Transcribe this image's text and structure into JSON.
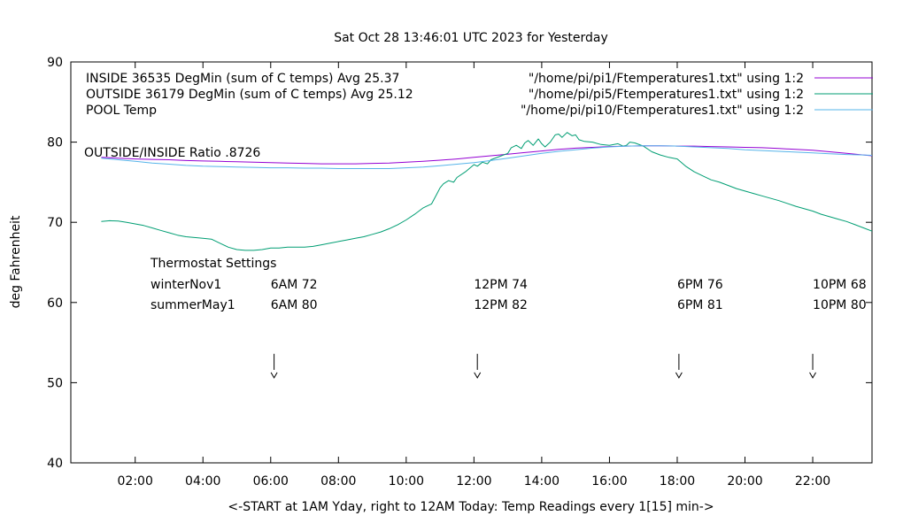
{
  "chart_data": {
    "type": "line",
    "title": "Sat Oct 28 13:46:01 UTC 2023 for Yesterday",
    "xlabel": "<-START at 1AM Yday, right to 12AM Today:  Temp Readings every 1[15] min->",
    "ylabel": "deg Fahrenheit",
    "xlim": [
      0.1,
      23.75
    ],
    "ylim": [
      40,
      90
    ],
    "grid": false,
    "legend_position": "top-left-inside",
    "x_ticks": [
      {
        "value": 2,
        "label": "02:00"
      },
      {
        "value": 4,
        "label": "04:00"
      },
      {
        "value": 6,
        "label": "06:00"
      },
      {
        "value": 8,
        "label": "08:00"
      },
      {
        "value": 10,
        "label": "10:00"
      },
      {
        "value": 12,
        "label": "12:00"
      },
      {
        "value": 14,
        "label": "14:00"
      },
      {
        "value": 16,
        "label": "16:00"
      },
      {
        "value": 18,
        "label": "18:00"
      },
      {
        "value": 20,
        "label": "20:00"
      },
      {
        "value": 22,
        "label": "22:00"
      }
    ],
    "y_ticks": [
      40,
      50,
      60,
      70,
      80,
      90
    ],
    "series": [
      {
        "name": "INSIDE",
        "legend_left": "INSIDE 36535 DegMin (sum of C temps) Avg 25.37",
        "legend_right": "\"/home/pi/pi1/Ftemperatures1.txt\" using 1:2",
        "color": "#9400D3",
        "points": [
          [
            1.0,
            78.1
          ],
          [
            1.5,
            78.0
          ],
          [
            2.0,
            77.9
          ],
          [
            2.5,
            77.85
          ],
          [
            3.0,
            77.8
          ],
          [
            3.5,
            77.7
          ],
          [
            4.0,
            77.65
          ],
          [
            4.5,
            77.6
          ],
          [
            5.0,
            77.55
          ],
          [
            5.5,
            77.5
          ],
          [
            6.0,
            77.45
          ],
          [
            6.5,
            77.4
          ],
          [
            7.0,
            77.35
          ],
          [
            7.5,
            77.3
          ],
          [
            8.0,
            77.3
          ],
          [
            8.5,
            77.3
          ],
          [
            9.0,
            77.35
          ],
          [
            9.5,
            77.4
          ],
          [
            10.0,
            77.5
          ],
          [
            10.5,
            77.6
          ],
          [
            11.0,
            77.75
          ],
          [
            11.5,
            77.9
          ],
          [
            12.0,
            78.1
          ],
          [
            12.5,
            78.3
          ],
          [
            13.0,
            78.5
          ],
          [
            13.5,
            78.7
          ],
          [
            14.0,
            78.9
          ],
          [
            14.5,
            79.1
          ],
          [
            15.0,
            79.25
          ],
          [
            15.5,
            79.35
          ],
          [
            16.0,
            79.45
          ],
          [
            16.5,
            79.5
          ],
          [
            17.0,
            79.55
          ],
          [
            17.5,
            79.55
          ],
          [
            18.0,
            79.5
          ],
          [
            18.5,
            79.5
          ],
          [
            19.0,
            79.45
          ],
          [
            19.5,
            79.4
          ],
          [
            20.0,
            79.35
          ],
          [
            20.5,
            79.3
          ],
          [
            21.0,
            79.2
          ],
          [
            21.5,
            79.1
          ],
          [
            22.0,
            79.0
          ],
          [
            22.5,
            78.8
          ],
          [
            23.0,
            78.6
          ],
          [
            23.5,
            78.4
          ],
          [
            23.75,
            78.3
          ]
        ]
      },
      {
        "name": "OUTSIDE",
        "legend_left": "OUTSIDE 36179 DegMin (sum of C temps) Avg 25.12",
        "legend_right": "\"/home/pi/pi5/Ftemperatures1.txt\" using 1:2",
        "color": "#009E73",
        "points": [
          [
            1.0,
            70.1
          ],
          [
            1.25,
            70.2
          ],
          [
            1.5,
            70.15
          ],
          [
            1.75,
            70.0
          ],
          [
            2.0,
            69.8
          ],
          [
            2.25,
            69.6
          ],
          [
            2.5,
            69.3
          ],
          [
            2.75,
            69.0
          ],
          [
            3.0,
            68.7
          ],
          [
            3.25,
            68.4
          ],
          [
            3.5,
            68.2
          ],
          [
            3.75,
            68.1
          ],
          [
            4.0,
            68.0
          ],
          [
            4.25,
            67.9
          ],
          [
            4.5,
            67.4
          ],
          [
            4.75,
            66.9
          ],
          [
            5.0,
            66.6
          ],
          [
            5.25,
            66.5
          ],
          [
            5.5,
            66.5
          ],
          [
            5.75,
            66.6
          ],
          [
            6.0,
            66.8
          ],
          [
            6.25,
            66.8
          ],
          [
            6.5,
            66.9
          ],
          [
            6.75,
            66.9
          ],
          [
            7.0,
            66.9
          ],
          [
            7.25,
            67.0
          ],
          [
            7.5,
            67.2
          ],
          [
            7.75,
            67.4
          ],
          [
            8.0,
            67.6
          ],
          [
            8.25,
            67.8
          ],
          [
            8.5,
            68.0
          ],
          [
            8.75,
            68.2
          ],
          [
            9.0,
            68.5
          ],
          [
            9.25,
            68.8
          ],
          [
            9.5,
            69.2
          ],
          [
            9.75,
            69.7
          ],
          [
            10.0,
            70.3
          ],
          [
            10.25,
            71.0
          ],
          [
            10.5,
            71.8
          ],
          [
            10.6,
            72.0
          ],
          [
            10.75,
            72.3
          ],
          [
            10.9,
            73.5
          ],
          [
            11.0,
            74.3
          ],
          [
            11.1,
            74.8
          ],
          [
            11.25,
            75.2
          ],
          [
            11.4,
            75.0
          ],
          [
            11.5,
            75.6
          ],
          [
            11.75,
            76.3
          ],
          [
            12.0,
            77.2
          ],
          [
            12.1,
            77.0
          ],
          [
            12.25,
            77.5
          ],
          [
            12.4,
            77.3
          ],
          [
            12.5,
            77.8
          ],
          [
            12.75,
            78.2
          ],
          [
            13.0,
            78.6
          ],
          [
            13.1,
            79.3
          ],
          [
            13.25,
            79.6
          ],
          [
            13.4,
            79.2
          ],
          [
            13.5,
            79.9
          ],
          [
            13.6,
            80.2
          ],
          [
            13.75,
            79.6
          ],
          [
            13.9,
            80.4
          ],
          [
            14.0,
            79.8
          ],
          [
            14.1,
            79.4
          ],
          [
            14.25,
            80.0
          ],
          [
            14.4,
            80.9
          ],
          [
            14.5,
            81.0
          ],
          [
            14.6,
            80.6
          ],
          [
            14.75,
            81.2
          ],
          [
            14.9,
            80.8
          ],
          [
            15.0,
            80.9
          ],
          [
            15.1,
            80.3
          ],
          [
            15.25,
            80.1
          ],
          [
            15.5,
            80.0
          ],
          [
            15.75,
            79.7
          ],
          [
            16.0,
            79.6
          ],
          [
            16.25,
            79.8
          ],
          [
            16.4,
            79.5
          ],
          [
            16.5,
            79.6
          ],
          [
            16.6,
            80.0
          ],
          [
            16.75,
            79.9
          ],
          [
            17.0,
            79.5
          ],
          [
            17.25,
            78.8
          ],
          [
            17.5,
            78.4
          ],
          [
            17.75,
            78.1
          ],
          [
            18.0,
            77.9
          ],
          [
            18.25,
            77.0
          ],
          [
            18.5,
            76.3
          ],
          [
            18.75,
            75.8
          ],
          [
            19.0,
            75.3
          ],
          [
            19.25,
            75.0
          ],
          [
            19.5,
            74.6
          ],
          [
            19.75,
            74.2
          ],
          [
            20.0,
            73.9
          ],
          [
            20.25,
            73.6
          ],
          [
            20.5,
            73.3
          ],
          [
            21.0,
            72.7
          ],
          [
            21.5,
            72.0
          ],
          [
            22.0,
            71.4
          ],
          [
            22.25,
            71.0
          ],
          [
            22.5,
            70.7
          ],
          [
            22.75,
            70.4
          ],
          [
            23.0,
            70.1
          ],
          [
            23.25,
            69.7
          ],
          [
            23.5,
            69.3
          ],
          [
            23.75,
            68.9
          ]
        ]
      },
      {
        "name": "POOL Temp",
        "legend_left": "POOL Temp",
        "legend_right": "\"/home/pi/pi10/Ftemperatures1.txt\" using 1:2",
        "color": "#56B4E9",
        "points": [
          [
            1.0,
            78.0
          ],
          [
            1.5,
            77.8
          ],
          [
            2.0,
            77.6
          ],
          [
            2.5,
            77.4
          ],
          [
            3.0,
            77.25
          ],
          [
            3.5,
            77.1
          ],
          [
            4.0,
            77.0
          ],
          [
            4.5,
            76.95
          ],
          [
            5.0,
            76.9
          ],
          [
            5.5,
            76.85
          ],
          [
            6.0,
            76.8
          ],
          [
            6.5,
            76.8
          ],
          [
            7.0,
            76.75
          ],
          [
            7.5,
            76.75
          ],
          [
            8.0,
            76.7
          ],
          [
            8.5,
            76.7
          ],
          [
            9.0,
            76.7
          ],
          [
            9.5,
            76.7
          ],
          [
            10.0,
            76.8
          ],
          [
            10.5,
            76.9
          ],
          [
            11.0,
            77.05
          ],
          [
            11.5,
            77.25
          ],
          [
            12.0,
            77.45
          ],
          [
            12.5,
            77.7
          ],
          [
            13.0,
            78.0
          ],
          [
            13.5,
            78.3
          ],
          [
            14.0,
            78.6
          ],
          [
            14.5,
            78.85
          ],
          [
            15.0,
            79.05
          ],
          [
            15.5,
            79.25
          ],
          [
            16.0,
            79.4
          ],
          [
            16.5,
            79.5
          ],
          [
            17.0,
            79.55
          ],
          [
            17.5,
            79.55
          ],
          [
            18.0,
            79.5
          ],
          [
            18.5,
            79.4
          ],
          [
            19.0,
            79.3
          ],
          [
            19.5,
            79.2
          ],
          [
            20.0,
            79.05
          ],
          [
            20.5,
            78.95
          ],
          [
            21.0,
            78.85
          ],
          [
            21.5,
            78.75
          ],
          [
            22.0,
            78.65
          ],
          [
            22.5,
            78.55
          ],
          [
            23.0,
            78.45
          ],
          [
            23.5,
            78.4
          ],
          [
            23.75,
            78.35
          ]
        ]
      }
    ],
    "annotations": {
      "ratio_label": "OUTSIDE/INSIDE Ratio .8726",
      "thermostat": {
        "heading": "Thermostat Settings",
        "rows": [
          {
            "label": "winterNov1",
            "cols": [
              "6AM 72",
              "12PM 74",
              "6PM 76",
              "10PM 68"
            ]
          },
          {
            "label": "summerMay1",
            "cols": [
              "6AM 80",
              "12PM 82",
              "6PM 81",
              "10PM 80"
            ]
          }
        ],
        "col_hours": [
          6,
          12,
          18,
          22
        ]
      },
      "arrows_x": [
        6.1,
        12.1,
        18.05,
        22.0
      ],
      "arrow_y": {
        "from": 53.6,
        "to": 51.6
      }
    }
  }
}
